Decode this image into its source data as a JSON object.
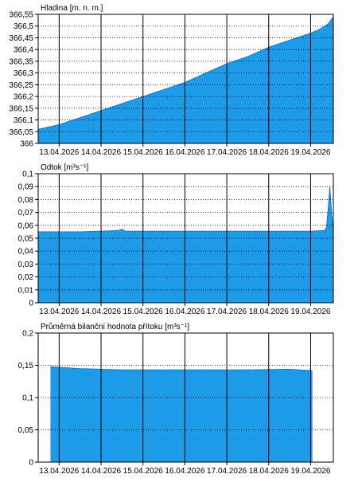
{
  "colors": {
    "area": "#1e9be8",
    "frame": "#000000",
    "grid_dotted": "#000000"
  },
  "chart_data": [
    {
      "type": "area",
      "title": "Hladina [m. n. m.]",
      "xlabel": "",
      "ylabel": "Hladina [m. n. m.]",
      "x_tick_labels": [
        "13.04.2026",
        "14.04.2026",
        "15.04.2026",
        "16.04.2026",
        "17.04.2026",
        "18.04.2026",
        "19.04.2026"
      ],
      "y_tick_labels": [
        "366",
        "366,05",
        "366,1",
        "366,15",
        "366,2",
        "366,25",
        "366,3",
        "366,35",
        "366,4",
        "366,45",
        "366,5",
        "366,55"
      ],
      "ylim": [
        366.0,
        366.55
      ],
      "xlim": [
        "2026-04-12T12:00",
        "2026-04-19T13:00"
      ],
      "grid": "vertical solid at midnight, horizontal dotted",
      "series": [
        {
          "x": [
            "2026-04-12T12:00",
            "2026-04-13T00:00",
            "2026-04-13T12:00",
            "2026-04-14T00:00",
            "2026-04-14T12:00",
            "2026-04-15T00:00",
            "2026-04-15T12:00",
            "2026-04-16T00:00",
            "2026-04-16T12:00",
            "2026-04-17T00:00",
            "2026-04-17T12:00",
            "2026-04-18T00:00",
            "2026-04-18T12:00",
            "2026-04-19T00:00",
            "2026-04-19T06:00",
            "2026-04-19T10:00",
            "2026-04-19T12:00",
            "2026-04-19T13:00"
          ],
          "values": [
            366.06,
            366.08,
            366.11,
            366.14,
            366.17,
            366.2,
            366.23,
            366.26,
            366.3,
            366.34,
            366.37,
            366.41,
            366.44,
            366.47,
            366.49,
            366.51,
            366.53,
            366.54
          ]
        }
      ]
    },
    {
      "type": "area",
      "title": "Odtok [m³s⁻¹]",
      "xlabel": "",
      "ylabel": "Odtok [m³s⁻¹]",
      "x_tick_labels": [
        "13.04.2026",
        "14.04.2026",
        "15.04.2026",
        "16.04.2026",
        "17.04.2026",
        "18.04.2026",
        "19.04.2026"
      ],
      "y_tick_labels": [
        "0",
        "0,01",
        "0,02",
        "0,03",
        "0,04",
        "0,05",
        "0,06",
        "0,07",
        "0,08",
        "0,09",
        "0,1"
      ],
      "ylim": [
        0,
        0.1
      ],
      "xlim": [
        "2026-04-12T12:00",
        "2026-04-19T13:00"
      ],
      "grid": "vertical solid at midnight, horizontal dotted",
      "series": [
        {
          "x": [
            "2026-04-12T12:00",
            "2026-04-13T12:00",
            "2026-04-14T00:00",
            "2026-04-14T10:00",
            "2026-04-14T12:00",
            "2026-04-14T14:00",
            "2026-04-15T00:00",
            "2026-04-16T00:00",
            "2026-04-17T00:00",
            "2026-04-18T00:00",
            "2026-04-19T00:00",
            "2026-04-19T08:00",
            "2026-04-19T09:00",
            "2026-04-19T10:00",
            "2026-04-19T11:00",
            "2026-04-19T12:00",
            "2026-04-19T13:00"
          ],
          "values": [
            0.055,
            0.055,
            0.0555,
            0.056,
            0.057,
            0.0555,
            0.0555,
            0.0555,
            0.0555,
            0.0555,
            0.0555,
            0.056,
            0.058,
            0.072,
            0.09,
            0.07,
            0.056
          ]
        }
      ]
    },
    {
      "type": "area",
      "title": "Průměrná bilanční hodnota přítoku [m³s⁻¹]",
      "xlabel": "",
      "ylabel": "Průměrná bilanční hodnota přítoku [m³s⁻¹]",
      "x_tick_labels": [
        "13.04.2026",
        "14.04.2026",
        "15.04.2026",
        "16.04.2026",
        "17.04.2026",
        "18.04.2026",
        "19.04.2026"
      ],
      "y_tick_labels": [
        "0",
        "0,05",
        "0,1",
        "0,15",
        "0,2"
      ],
      "ylim": [
        0,
        0.2
      ],
      "xlim": [
        "2026-04-12T12:00",
        "2026-04-19T13:00"
      ],
      "grid": "vertical solid at midnight, horizontal dotted",
      "series": [
        {
          "x": [
            "2026-04-12T19:00",
            "2026-04-13T12:00",
            "2026-04-14T12:00",
            "2026-04-15T12:00",
            "2026-04-16T12:00",
            "2026-04-17T12:00",
            "2026-04-18T12:00",
            "2026-04-19T00:00",
            "2026-04-19T01:00"
          ],
          "values": [
            0.148,
            0.145,
            0.143,
            0.143,
            0.143,
            0.143,
            0.144,
            0.142,
            0.141
          ]
        }
      ]
    }
  ]
}
